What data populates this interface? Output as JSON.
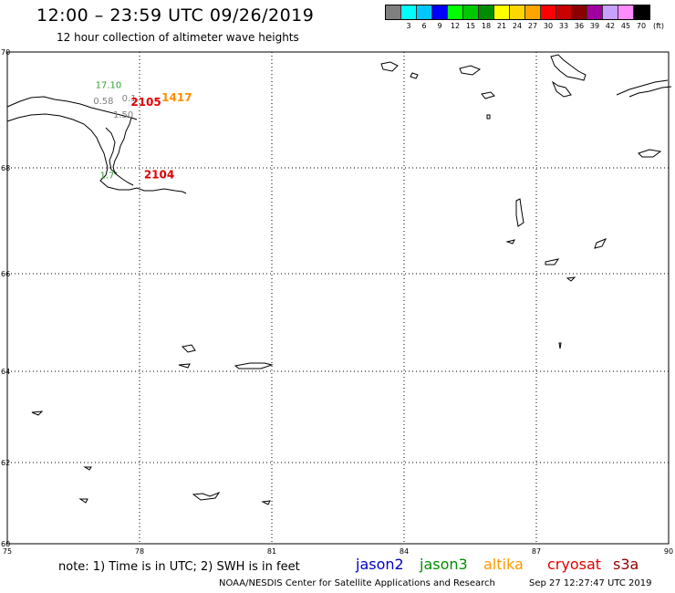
{
  "header": {
    "title": "12:00 – 23:59 UTC 09/26/2019",
    "subtitle": "12 hour collection of altimeter wave heights"
  },
  "color_scale": {
    "unit": "(ft)",
    "bins": [
      {
        "label": "",
        "color": "#7f7f7f"
      },
      {
        "label": "3",
        "color": "#00ffff"
      },
      {
        "label": "6",
        "color": "#00c8ff"
      },
      {
        "label": "9",
        "color": "#0000ff"
      },
      {
        "label": "12",
        "color": "#00ff00"
      },
      {
        "label": "15",
        "color": "#00c800"
      },
      {
        "label": "18",
        "color": "#008c00"
      },
      {
        "label": "21",
        "color": "#ffff00"
      },
      {
        "label": "24",
        "color": "#ffd700"
      },
      {
        "label": "27",
        "color": "#ffa500"
      },
      {
        "label": "30",
        "color": "#ff0000"
      },
      {
        "label": "33",
        "color": "#c80000"
      },
      {
        "label": "36",
        "color": "#8b0000"
      },
      {
        "label": "39",
        "color": "#a000a0"
      },
      {
        "label": "42",
        "color": "#c8a0ff"
      },
      {
        "label": "45",
        "color": "#ff8cff"
      },
      {
        "label": "70",
        "color": "#000000"
      }
    ]
  },
  "map": {
    "lon_range": [
      75,
      90
    ],
    "lat_range": [
      60,
      70
    ],
    "lon_ticks": [
      "75",
      "78",
      "81",
      "84",
      "87",
      "90"
    ],
    "lat_ticks": [
      "70",
      "68",
      "66",
      "64",
      "62",
      "60"
    ],
    "grid": "dotted",
    "observations": [
      {
        "text": "17.10",
        "lon": 77.0,
        "lat": 69.38,
        "color": "#2ca02c"
      },
      {
        "text": "0.58",
        "lon": 76.95,
        "lat": 69.1,
        "color": "#808080"
      },
      {
        "text": "0.1",
        "lon": 77.6,
        "lat": 69.15,
        "color": "#808080"
      },
      {
        "text": "1.50",
        "lon": 77.4,
        "lat": 68.87,
        "color": "#808080"
      },
      {
        "text": "2105",
        "lon": 77.8,
        "lat": 69.07,
        "color": "#e00000"
      },
      {
        "text": "1417",
        "lon": 78.5,
        "lat": 69.15,
        "color": "#ff8c00"
      },
      {
        "text": "1.7",
        "lon": 77.1,
        "lat": 67.8,
        "color": "#2ca02c"
      },
      {
        "text": "2104",
        "lon": 78.1,
        "lat": 67.8,
        "color": "#e00000"
      }
    ]
  },
  "footer": {
    "note": "note: 1) Time is in UTC; 2) SWH is in feet",
    "legend": [
      {
        "label": "jason2",
        "color": "#0000c8"
      },
      {
        "label": "jason3",
        "color": "#008c00"
      },
      {
        "label": "altika",
        "color": "#ff9900"
      },
      {
        "label": "cryosat",
        "color": "#e00000"
      },
      {
        "label": "s3a",
        "color": "#8b0000"
      }
    ],
    "credit": "NOAA/NESDIS Center for Satellite Applications and Research",
    "timestamp": "Sep 27 12:27:47 UTC 2019"
  }
}
